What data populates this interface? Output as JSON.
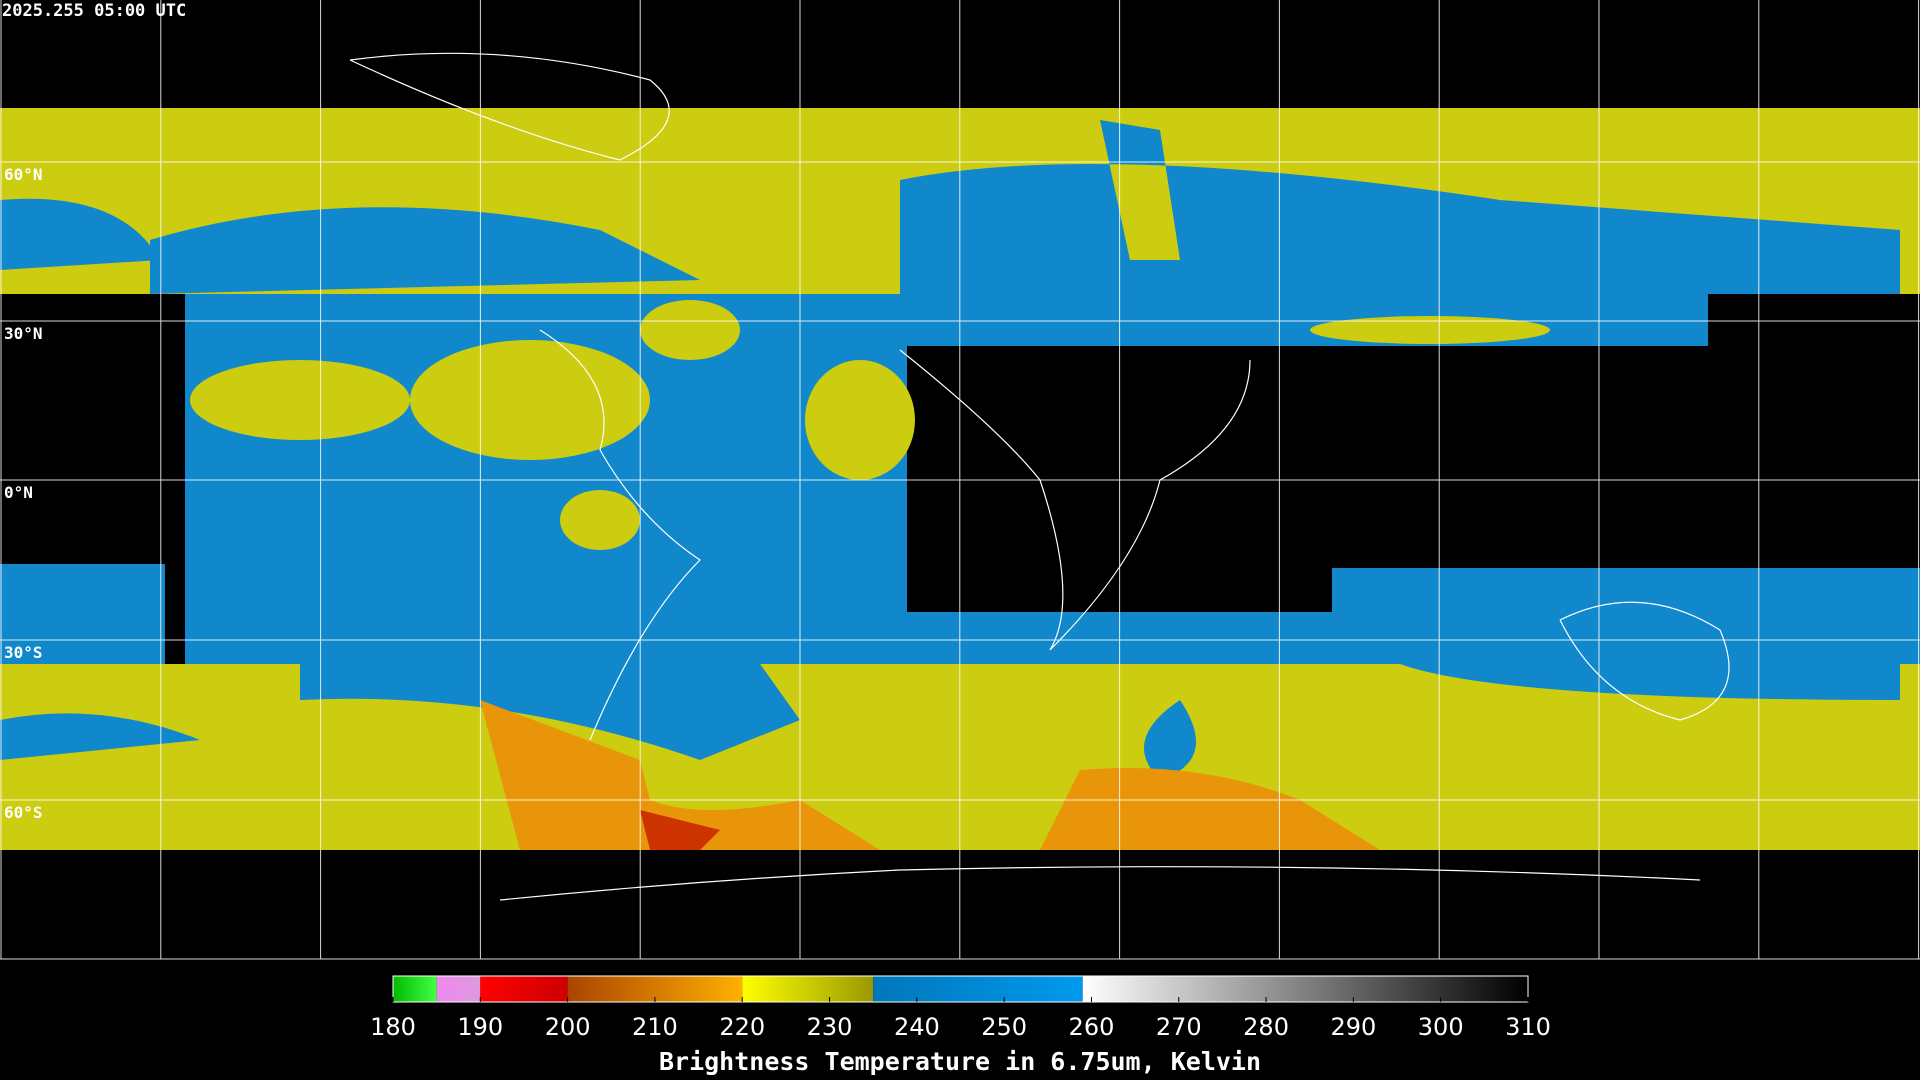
{
  "header": {
    "title": "2025.255 05:00 UTC"
  },
  "map": {
    "lat_labels": [
      "60°N",
      "30°N",
      "0°N",
      "30°S",
      "60°S"
    ]
  },
  "colorbar": {
    "label": "Brightness Temperature in 6.75um, Kelvin",
    "range": [
      180,
      310
    ],
    "ticks": [
      180,
      190,
      200,
      210,
      220,
      230,
      240,
      250,
      260,
      270,
      280,
      290,
      300,
      310
    ],
    "segments": [
      {
        "start": 180,
        "end": 185,
        "colors": [
          "#00bb00",
          "#44ff44"
        ]
      },
      {
        "start": 185,
        "end": 190,
        "colors": [
          "#ee88ee",
          "#dd99dd"
        ]
      },
      {
        "start": 190,
        "end": 200,
        "colors": [
          "#ff0000",
          "#cc0000"
        ]
      },
      {
        "start": 200,
        "end": 220,
        "colors": [
          "#aa4400",
          "#ffb000"
        ]
      },
      {
        "start": 220,
        "end": 235,
        "colors": [
          "#ffff00",
          "#999900"
        ]
      },
      {
        "start": 235,
        "end": 259,
        "colors": [
          "#0077bb",
          "#0099ee"
        ]
      },
      {
        "start": 259,
        "end": 310,
        "colors": [
          "#ffffff",
          "#000000"
        ]
      }
    ]
  }
}
